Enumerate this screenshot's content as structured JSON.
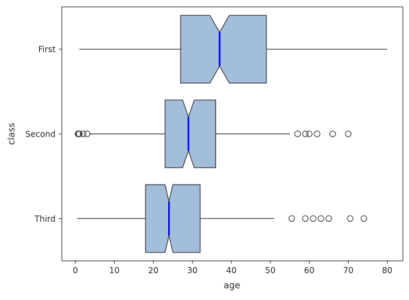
{
  "chart_data": {
    "type": "boxplot",
    "orientation": "horizontal",
    "notched": true,
    "xlabel": "age",
    "ylabel": "class",
    "xlim": [
      -3.5,
      84
    ],
    "xticks": [
      0,
      10,
      20,
      30,
      40,
      50,
      60,
      70,
      80
    ],
    "categories": [
      "First",
      "Second",
      "Third"
    ],
    "boxes": [
      {
        "category": "First",
        "whisker_low": 1,
        "q1": 27,
        "notch_low": 34.5,
        "median": 37,
        "notch_high": 39.5,
        "q3": 49,
        "whisker_high": 80,
        "outliers": []
      },
      {
        "category": "Second",
        "whisker_low": 3.5,
        "q1": 23,
        "notch_low": 27.5,
        "median": 29,
        "notch_high": 30.5,
        "q3": 36,
        "whisker_high": 55,
        "outliers": [
          0.67,
          0.83,
          0.92,
          1,
          2,
          3,
          57,
          59,
          60,
          62,
          66,
          70
        ]
      },
      {
        "category": "Third",
        "whisker_low": 0.42,
        "q1": 18,
        "notch_low": 23,
        "median": 24,
        "notch_high": 25,
        "q3": 32,
        "whisker_high": 51,
        "outliers": [
          55.5,
          59,
          61,
          63,
          65,
          70.5,
          74
        ]
      }
    ],
    "colors": {
      "box_fill": "#a3bedb",
      "box_edge": "#3f3f3f",
      "median": "#0000ff",
      "outlier_edge": "#3f3f3f",
      "axis": "#000000"
    }
  }
}
